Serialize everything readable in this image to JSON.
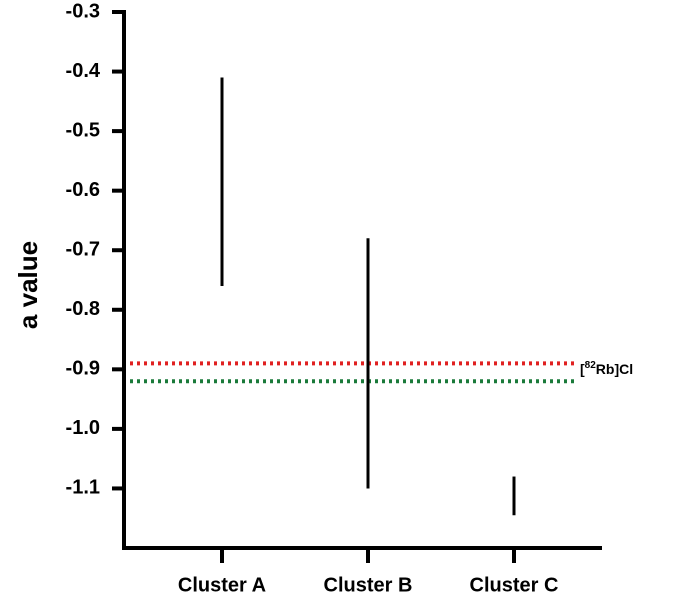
{
  "chart_data": {
    "type": "range",
    "y_label": "a value",
    "categories": [
      "Cluster A",
      "Cluster B",
      "Cluster C"
    ],
    "high": [
      -0.41,
      -0.68,
      -1.08
    ],
    "low": [
      -0.76,
      -1.1,
      -1.145
    ],
    "color": "#000000",
    "ylim": [
      -1.2,
      -0.3
    ],
    "yticks": [
      -0.3,
      -0.4,
      -0.5,
      -0.6,
      -0.7,
      -0.8,
      -0.9,
      {
        "value": -1,
        "label": "-1.0"
      },
      -1.1
    ],
    "reference_lines": [
      {
        "value": -0.89,
        "color": "#e02020"
      },
      {
        "value": -0.92,
        "color": "#1a7a3a"
      }
    ],
    "reference_label": {
      "open": "[",
      "superscript": "82",
      "text": "Rb]Cl"
    }
  }
}
